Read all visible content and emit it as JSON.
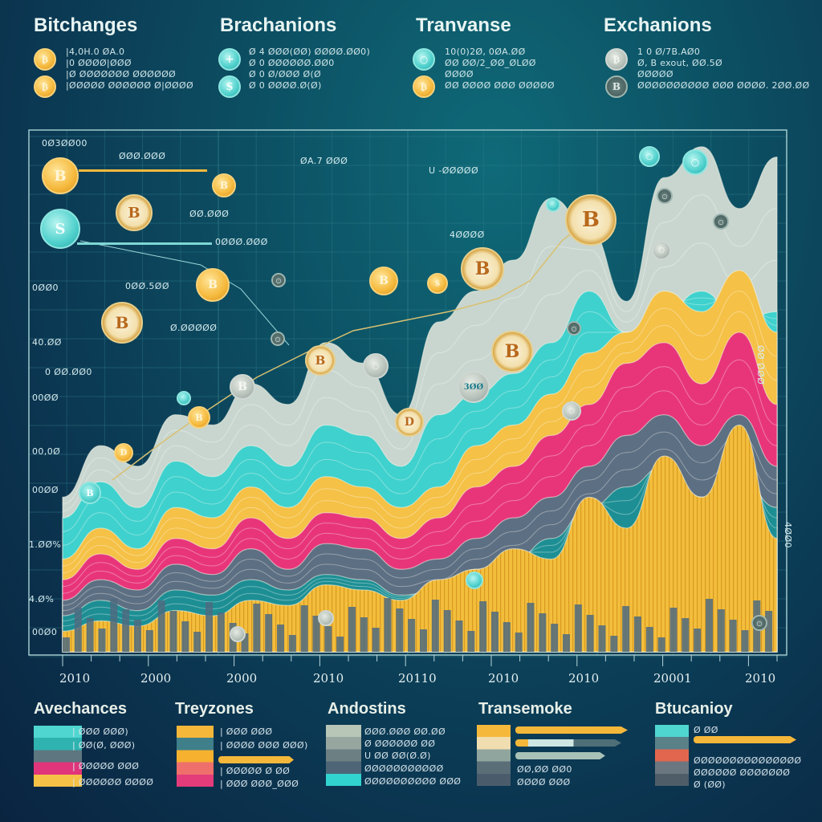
{
  "header": {
    "columns": [
      {
        "title": "Bitchanges",
        "icon_color": "#f5b93c",
        "lines": [
          "|4,0H.0 ØA.0",
          "|0 ØØØØ|ØØØ",
          "|Ø ØØØØØØØ ØØØØØØ",
          "|ØØØØØ ØØØØØØ Ø|ØØØØ"
        ]
      },
      {
        "title": "Brachanions",
        "icon_color": "#4fd0cc",
        "lines": [
          "Ø 4 ØØØ(ØØ) ØØØØ.ØØ0)",
          "Ø 0 ØØØØØØ.ØØ0",
          "Ø 0 Ø/ØØØ Ø(Ø",
          "Ø 0 ØØØØ.Ø(Ø)"
        ]
      },
      {
        "title": "Tranvanse",
        "icon_color": "#4fd0cc",
        "lines": [
          "10(0)2Ø, 0ØA.ØØ",
          "ØØ ØØ/2_ØØ_ØLØØ",
          "ØØØØ",
          "ØØ ØØØØ ØØØ ØØØØØ"
        ]
      },
      {
        "title": "Exchanions",
        "icon_color": "#b7c2bb",
        "lines": [
          "1 0 Ø/7B.AØ0",
          "Ø, B exout, ØØ.5Ø",
          "ØØØØØ",
          "ØØØØØØØØØØ ØØØ ØØØØ. 2ØØ.ØØ"
        ]
      }
    ]
  },
  "chart_data": {
    "type": "area",
    "title": "",
    "xlabel": "",
    "ylabel": "",
    "x_tick_labels": [
      "2010",
      "2000",
      "2000",
      "2010",
      "20110",
      "2010",
      "2010",
      "20001",
      "2010"
    ],
    "y_tick_labels": [
      "0Ø3ØØ00",
      "0ØØ0",
      "40.ØØ",
      "0 ØØ.ØØ0",
      "00ØØ",
      "00,0Ø",
      "00ØØ",
      "1.ØØ%",
      "4.Ø%",
      "00Ø0"
    ],
    "right_axis_labels": [
      "ØØ ØØØ",
      "4ØØ0"
    ],
    "annotations": [
      "ØØØ.ØØØ",
      "ØØ.ØØØ",
      "0ØØØ.ØØØ",
      "0ØØ.5ØØ",
      "Ø.ØØØØØ",
      "ØA.7 ØØØ",
      "U -ØØØØØ",
      "4ØØØØ"
    ],
    "coin_badges": [
      "B",
      "B",
      "S",
      "B",
      "B",
      "B",
      "B",
      "B",
      "B",
      "B",
      "B",
      "3ØØ"
    ],
    "ylim": [
      0,
      100
    ],
    "series": [
      {
        "name": "grey-ridge",
        "color": "#c9d6cf",
        "values": [
          30,
          40,
          36,
          46,
          44,
          52,
          48,
          60,
          56,
          46,
          64,
          70,
          76,
          88,
          82,
          68,
          92,
          98,
          86,
          96
        ]
      },
      {
        "name": "teal",
        "color": "#3fd1cd",
        "values": [
          26,
          33,
          28,
          37,
          34,
          40,
          36,
          44,
          42,
          36,
          46,
          50,
          54,
          60,
          70,
          62,
          66,
          70,
          64,
          66
        ]
      },
      {
        "name": "yellow",
        "color": "#f5c146",
        "values": [
          18,
          24,
          20,
          28,
          26,
          32,
          28,
          34,
          32,
          28,
          32,
          40,
          44,
          50,
          58,
          62,
          70,
          66,
          74,
          62
        ]
      },
      {
        "name": "pink",
        "color": "#e8357a",
        "values": [
          14,
          19,
          16,
          22,
          20,
          26,
          22,
          27,
          26,
          22,
          26,
          32,
          36,
          42,
          48,
          56,
          60,
          52,
          62,
          48
        ]
      },
      {
        "name": "slate",
        "color": "#5d6f82",
        "values": [
          10,
          14,
          12,
          17,
          15,
          20,
          16,
          21,
          20,
          16,
          18,
          22,
          26,
          30,
          36,
          42,
          46,
          40,
          46,
          36
        ]
      },
      {
        "name": "deep-teal",
        "color": "#1d8f94",
        "values": [
          7,
          10,
          8,
          12,
          11,
          14,
          12,
          15,
          14,
          11,
          12,
          16,
          18,
          22,
          28,
          32,
          36,
          30,
          34,
          28
        ]
      },
      {
        "name": "gold-bars",
        "color": "#f3be3c",
        "values": [
          4,
          6,
          5,
          8,
          7,
          10,
          9,
          13,
          12,
          10,
          14,
          16,
          20,
          18,
          30,
          24,
          38,
          30,
          44,
          22
        ]
      }
    ]
  },
  "footer": {
    "columns": [
      {
        "title": "Avechances",
        "swatches": [
          "#4fd6d0",
          "#2fb3b0",
          "#5d7680",
          "#e0357a",
          "#f5c146"
        ],
        "lines": [
          "| ØØØ ØØØ)",
          "| ØØ(Ø, ØØØ)",
          "| ØØØØØ ØØØ",
          "| ØØØØØØ ØØØØ"
        ]
      },
      {
        "title": "Treyzones",
        "swatches": [
          "#f5b73a",
          "#3f7f8a",
          "#f6b12f",
          "#ee6f6b",
          "#e43b7a"
        ],
        "lines": [
          "| ØØØ ØØØ",
          "| ØØØØ ØØØ ØØØ)",
          "| ØØØØØ Ø ØØ",
          "| ØØØ ØØØ_ØØØ"
        ]
      },
      {
        "title": "Andostins",
        "swatches": [
          "#b8c6b8",
          "#97a69f",
          "#6c7f83",
          "#4d6576",
          "#31d4cf"
        ],
        "lines": [
          "ØØØ.ØØØ ØØ.ØØ",
          "Ø ØØØØØØ ØØ",
          "U ØØ ØØ(Ø.Ø)",
          "ØØØØØØØØØØØ",
          "ØØØØØØØØØØ ØØØ"
        ]
      },
      {
        "title": "Transemoke",
        "swatches": [
          "#f5b83a",
          "#f0ddb0",
          "#8fa59e",
          "#5a6e78",
          "#4a5c6c"
        ],
        "lines": [
          "ØØ,ØØ ØØ0",
          "ØØØØ ØØØ"
        ],
        "bar_values": [
          0.95,
          0.9,
          0.75
        ]
      },
      {
        "title": "Btucanioy",
        "swatches": [
          "#4fd6d0",
          "#5a8088",
          "#e2664e",
          "#6b7780",
          "#4f5d68"
        ],
        "lines": [
          "Ø ØØ",
          "ØØØØØØØØØØØØØØØ",
          "ØØØØØØ ØØØØØØØ",
          "Ø (ØØ)"
        ],
        "bar_values": [
          0.95
        ]
      }
    ]
  }
}
